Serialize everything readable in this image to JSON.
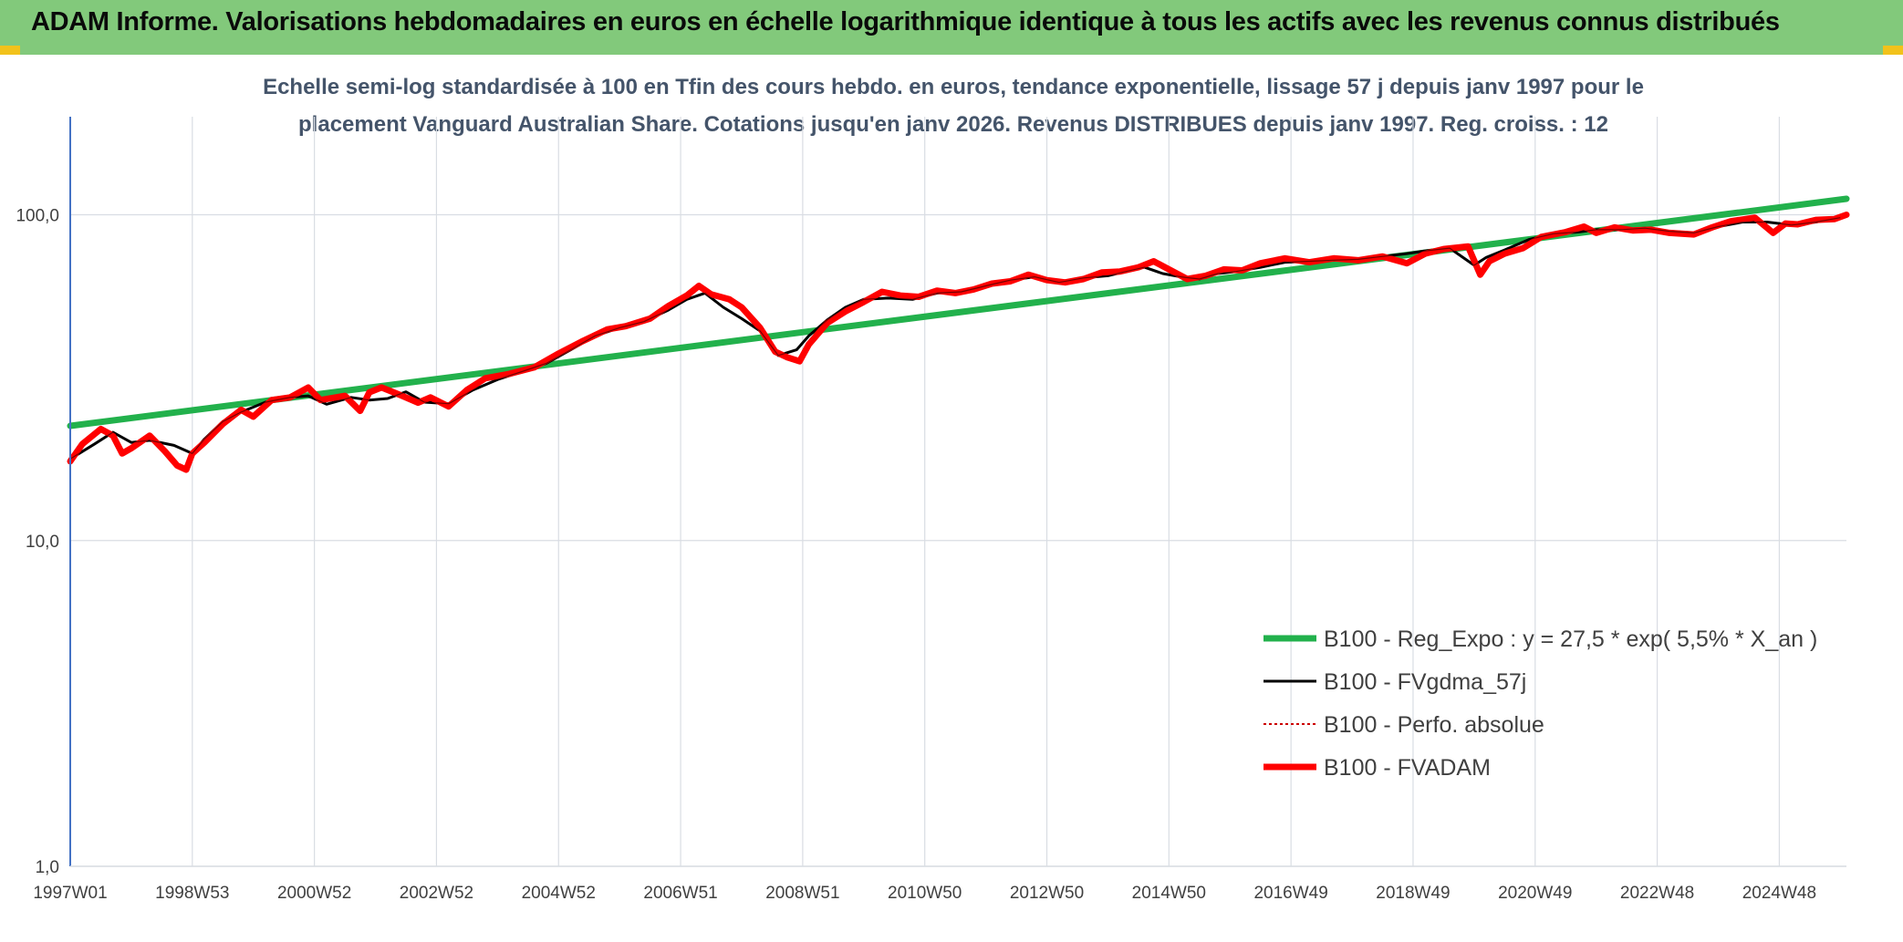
{
  "header": {
    "title": "ADAM Informe. Valorisations hebdomadaires en euros en échelle logarithmique identique à tous les actifs avec les revenus connus distribués"
  },
  "colors": {
    "header_bg": "#82c97b",
    "corner_accent": "#f2c21b",
    "trend": "#22b14c",
    "smoothed": "#000000",
    "absolute": "#cc0000",
    "fvadam": "#ff0000",
    "grid": "#d9dde3",
    "axis": "#4472c4"
  },
  "chart_data": {
    "type": "line",
    "title_lines": [
      "Echelle semi-log standardisée à 100 en Tfin des cours hebdo. en euros, tendance exponentielle, lissage 57 j depuis janv 1997 pour le",
      "placement Vanguard Australian Share. Cotations jusqu'en janv 2026. Revenus DISTRIBUES depuis janv 1997. Reg. croiss. : 12"
    ],
    "y_scale": "log",
    "ylim": [
      1,
      200
    ],
    "xlim": [
      1997.0,
      2026.1
    ],
    "y_ticks": [
      {
        "value": 1,
        "label": "1,0"
      },
      {
        "value": 10,
        "label": "10,0"
      },
      {
        "value": 100,
        "label": "100,0"
      }
    ],
    "x_ticks": [
      {
        "value": 1997.0,
        "label": "1997W01"
      },
      {
        "value": 1999.0,
        "label": "1998W53"
      },
      {
        "value": 2001.0,
        "label": "2000W52"
      },
      {
        "value": 2003.0,
        "label": "2002W52"
      },
      {
        "value": 2005.0,
        "label": "2004W52"
      },
      {
        "value": 2007.0,
        "label": "2006W51"
      },
      {
        "value": 2009.0,
        "label": "2008W51"
      },
      {
        "value": 2011.0,
        "label": "2010W50"
      },
      {
        "value": 2013.0,
        "label": "2012W50"
      },
      {
        "value": 2015.0,
        "label": "2014W50"
      },
      {
        "value": 2017.0,
        "label": "2016W49"
      },
      {
        "value": 2019.0,
        "label": "2018W49"
      },
      {
        "value": 2021.0,
        "label": "2020W49"
      },
      {
        "value": 2023.0,
        "label": "2022W48"
      },
      {
        "value": 2025.0,
        "label": "2024W48"
      }
    ],
    "grid": true,
    "legend_position": "bottom-right",
    "series": [
      {
        "name": "B100 - Reg_Expo : y = 27,5 * exp( 5,5% *  X_an )",
        "style": "thick-line",
        "color": "#22b14c",
        "x": [
          1997.0,
          2026.1
        ],
        "y": [
          22.5,
          112.0
        ]
      },
      {
        "name": "B100 - FVgdma_57j",
        "style": "line",
        "color": "#000000",
        "x": [
          1997.0,
          1997.4,
          1997.7,
          1998.0,
          1998.3,
          1998.7,
          1999.0,
          1999.2,
          1999.5,
          1999.8,
          2000.2,
          2000.6,
          2000.9,
          2001.2,
          2001.6,
          2001.9,
          2002.2,
          2002.5,
          2002.8,
          2003.2,
          2003.6,
          2004.0,
          2004.4,
          2004.8,
          2005.2,
          2005.6,
          2006.0,
          2006.4,
          2006.8,
          2007.1,
          2007.4,
          2007.7,
          2008.0,
          2008.3,
          2008.6,
          2008.9,
          2009.1,
          2009.4,
          2009.7,
          2010.0,
          2010.4,
          2010.8,
          2011.2,
          2011.6,
          2012.0,
          2012.4,
          2012.8,
          2013.2,
          2013.6,
          2014.0,
          2014.3,
          2014.6,
          2014.9,
          2015.2,
          2015.5,
          2015.8,
          2016.1,
          2016.5,
          2016.9,
          2017.3,
          2017.7,
          2018.1,
          2018.5,
          2018.9,
          2019.2,
          2019.6,
          2020.0,
          2020.2,
          2020.5,
          2020.9,
          2021.3,
          2021.7,
          2022.0,
          2022.4,
          2022.8,
          2023.2,
          2023.6,
          2024.0,
          2024.4,
          2024.8,
          2025.2,
          2025.6,
          2026.0
        ],
        "y": [
          17.8,
          19.8,
          21.5,
          20.0,
          20.3,
          19.6,
          18.5,
          20.5,
          23.2,
          24.8,
          26.6,
          27.5,
          27.8,
          26.2,
          27.5,
          27.0,
          27.3,
          28.6,
          26.6,
          26.3,
          29.0,
          31.2,
          33.0,
          35.0,
          38.5,
          42.5,
          45.0,
          47.0,
          51.0,
          55.0,
          57.5,
          52.0,
          48.0,
          44.0,
          37.0,
          38.5,
          42.5,
          47.5,
          52.0,
          55.0,
          55.5,
          55.0,
          57.5,
          58.0,
          60.5,
          63.0,
          64.5,
          62.0,
          64.0,
          65.0,
          67.0,
          69.0,
          66.0,
          64.5,
          63.5,
          66.0,
          67.0,
          69.0,
          71.5,
          72.0,
          72.5,
          73.0,
          74.5,
          76.0,
          77.5,
          79.0,
          70.0,
          74.0,
          78.0,
          84.0,
          87.5,
          88.5,
          90.0,
          90.0,
          91.0,
          89.0,
          88.0,
          92.0,
          95.0,
          95.0,
          93.0,
          95.0,
          98.0
        ]
      },
      {
        "name": "B100 - Perfo. absolue",
        "style": "dotted",
        "color": "#cc0000",
        "x": [
          1997.0,
          2026.1
        ],
        "y": [
          17.5,
          100.0
        ]
      },
      {
        "name": "B100 - FVADAM",
        "style": "thick-line",
        "color": "#ff0000",
        "x": [
          1997.0,
          1997.2,
          1997.5,
          1997.7,
          1997.85,
          1998.0,
          1998.3,
          1998.55,
          1998.75,
          1998.9,
          1999.0,
          1999.2,
          1999.5,
          1999.8,
          2000.0,
          2000.3,
          2000.6,
          2000.9,
          2001.1,
          2001.5,
          2001.75,
          2001.9,
          2002.1,
          2002.4,
          2002.7,
          2002.9,
          2003.2,
          2003.5,
          2003.8,
          2004.2,
          2004.6,
          2005.0,
          2005.4,
          2005.8,
          2006.1,
          2006.5,
          2006.8,
          2007.1,
          2007.3,
          2007.5,
          2007.8,
          2008.0,
          2008.3,
          2008.55,
          2008.75,
          2008.95,
          2009.1,
          2009.4,
          2009.7,
          2010.0,
          2010.3,
          2010.6,
          2010.9,
          2011.2,
          2011.5,
          2011.8,
          2012.1,
          2012.4,
          2012.7,
          2013.0,
          2013.3,
          2013.6,
          2013.9,
          2014.2,
          2014.5,
          2014.75,
          2015.0,
          2015.3,
          2015.6,
          2015.9,
          2016.2,
          2016.5,
          2016.9,
          2017.3,
          2017.7,
          2018.1,
          2018.5,
          2018.9,
          2019.2,
          2019.5,
          2019.9,
          2020.1,
          2020.25,
          2020.5,
          2020.8,
          2021.1,
          2021.5,
          2021.8,
          2022.0,
          2022.3,
          2022.6,
          2022.9,
          2023.2,
          2023.6,
          2023.9,
          2024.2,
          2024.6,
          2024.9,
          2025.1,
          2025.3,
          2025.6,
          2025.9,
          2026.1
        ],
        "y": [
          17.5,
          19.8,
          22.0,
          21.0,
          18.5,
          19.2,
          21.0,
          18.8,
          17.0,
          16.5,
          18.5,
          20.0,
          22.8,
          25.2,
          24.0,
          27.0,
          27.5,
          29.5,
          27.0,
          27.8,
          25.0,
          28.5,
          29.5,
          28.0,
          26.5,
          27.5,
          25.8,
          29.0,
          31.5,
          32.5,
          34.0,
          37.5,
          41.0,
          44.5,
          45.5,
          48.0,
          52.5,
          56.5,
          60.5,
          57.0,
          55.0,
          52.0,
          45.0,
          38.0,
          36.5,
          35.5,
          40.0,
          46.5,
          50.5,
          54.0,
          58.0,
          56.5,
          56.0,
          58.5,
          57.5,
          59.0,
          61.5,
          62.5,
          65.5,
          63.0,
          62.0,
          63.5,
          66.5,
          67.0,
          69.0,
          72.0,
          68.0,
          63.5,
          65.0,
          68.0,
          67.5,
          71.0,
          73.5,
          71.5,
          73.5,
          72.5,
          74.5,
          71.0,
          76.0,
          78.5,
          80.0,
          65.5,
          72.0,
          76.0,
          79.0,
          85.5,
          88.5,
          92.0,
          88.0,
          91.5,
          89.5,
          90.0,
          88.0,
          87.0,
          91.5,
          95.5,
          98.0,
          88.0,
          94.0,
          93.5,
          96.5,
          97.0,
          100.0
        ]
      }
    ]
  }
}
